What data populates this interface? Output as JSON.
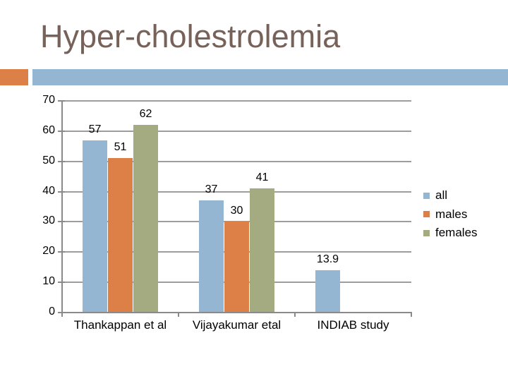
{
  "slide": {
    "title": "Hyper-cholestrolemia",
    "accent_bar": {
      "orange": "#DD8047",
      "blue": "#94B6D2"
    }
  },
  "chart_data": {
    "type": "bar",
    "title": "",
    "xlabel": "",
    "ylabel": "",
    "categories": [
      "Thankappan et al",
      "Vijayakumar etal",
      "INDIAB study"
    ],
    "series": [
      {
        "name": "all",
        "color": "#94B6D2",
        "values": [
          57,
          37,
          13.9
        ]
      },
      {
        "name": "males",
        "color": "#DD8047",
        "values": [
          51,
          30,
          null
        ]
      },
      {
        "name": "females",
        "color": "#A5AB81",
        "values": [
          62,
          41,
          null
        ]
      }
    ],
    "ylim": [
      0,
      70
    ],
    "yticks": [
      0,
      10,
      20,
      30,
      40,
      50,
      60,
      70
    ],
    "grid": true,
    "legend_position": "right",
    "data_labels": true,
    "text_color": "#000000",
    "gridline_color": "#9d9d9d",
    "axis_color": "#8a8a8a"
  }
}
